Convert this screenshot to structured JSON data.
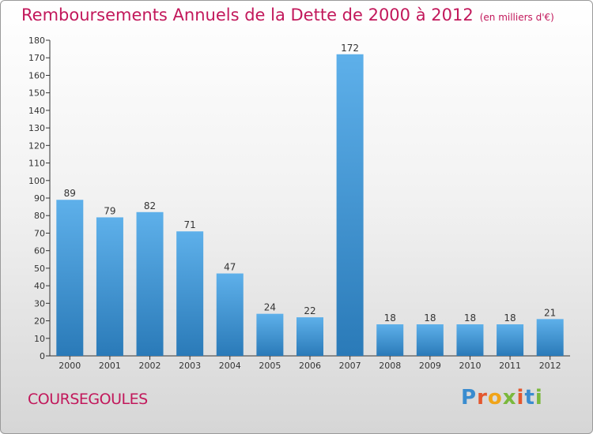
{
  "header": {
    "title": "Remboursements Annuels de la Dette de 2000 à 2012",
    "unit": "(en milliers d'€)"
  },
  "footer": {
    "commune": "COURSEGOULES",
    "brand": "Proxiti"
  },
  "colors": {
    "title": "#c2185b",
    "bar_top": "#5eb0ea",
    "bar_bottom": "#2a7ab8"
  },
  "chart_data": {
    "type": "bar",
    "categories": [
      "2000",
      "2001",
      "2002",
      "2003",
      "2004",
      "2005",
      "2006",
      "2007",
      "2008",
      "2009",
      "2010",
      "2011",
      "2012"
    ],
    "values": [
      89,
      79,
      82,
      71,
      47,
      24,
      22,
      172,
      18,
      18,
      18,
      18,
      21
    ],
    "title": "Remboursements Annuels de la Dette de 2000 à 2012",
    "unit": "(en milliers d'€)",
    "ylim": [
      0,
      180
    ],
    "yticks": [
      0,
      10,
      20,
      30,
      40,
      50,
      60,
      70,
      80,
      90,
      100,
      110,
      120,
      130,
      140,
      150,
      160,
      170,
      180
    ],
    "data_labels": true,
    "grid": false
  }
}
